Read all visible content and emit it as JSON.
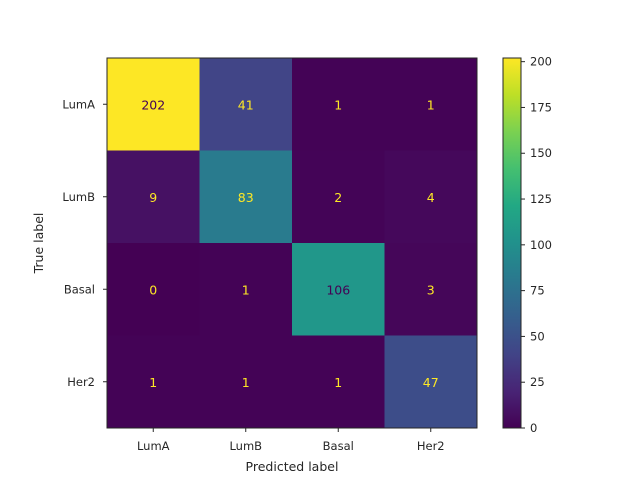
{
  "chart_data": {
    "type": "heatmap",
    "title": "",
    "xlabel": "Predicted label",
    "ylabel": "True label",
    "x_categories": [
      "LumA",
      "LumB",
      "Basal",
      "Her2"
    ],
    "y_categories": [
      "LumA",
      "LumB",
      "Basal",
      "Her2"
    ],
    "values": [
      [
        202,
        41,
        1,
        1
      ],
      [
        9,
        83,
        2,
        4
      ],
      [
        0,
        1,
        106,
        3
      ],
      [
        1,
        1,
        1,
        47
      ]
    ],
    "colormap": "viridis",
    "value_range": [
      0,
      202
    ],
    "colorbar_ticks": [
      0,
      25,
      50,
      75,
      100,
      125,
      150,
      175,
      200
    ],
    "grid": false
  }
}
